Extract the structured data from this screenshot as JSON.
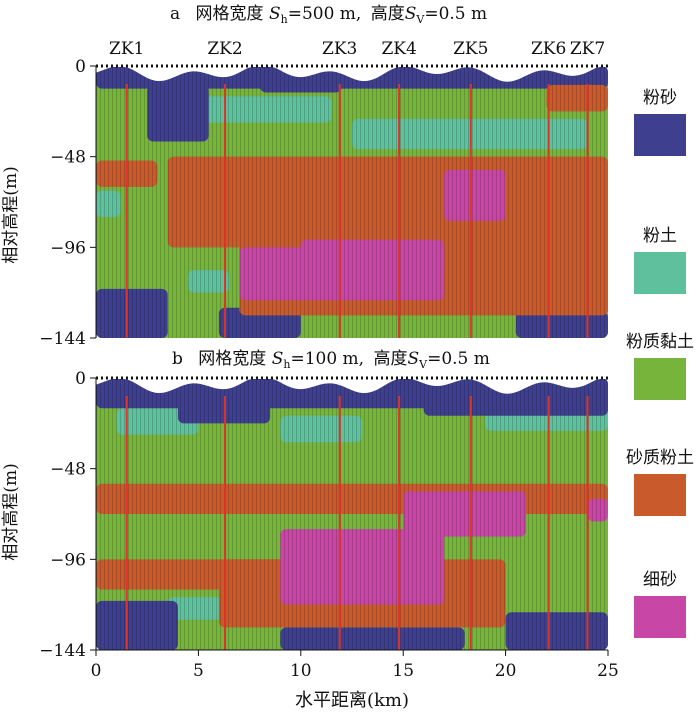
{
  "colors": {
    "粉砂": "#3e3f8f",
    "粉土": "#5ec09c",
    "粉质黏土": "#76b43c",
    "砂质粉土": "#c85a2c",
    "细砂": "#c847a6"
  },
  "legend": [
    {
      "label": "粉砂",
      "color": "#3e3f8f"
    },
    {
      "label": "粉土",
      "color": "#5ec09c"
    },
    {
      "label": "粉质黏土",
      "color": "#76b43c"
    },
    {
      "label": "砂质粉土",
      "color": "#c85a2c"
    },
    {
      "label": "细砂",
      "color": "#c847a6"
    }
  ],
  "panel_a": {
    "prefix": "a",
    "title_pre": "网格宽度",
    "sh_value": "=500 m,",
    "title_mid": "高度",
    "sv_value": "=0.5 m"
  },
  "panel_b": {
    "prefix": "b",
    "title_pre": "网格宽度",
    "sh_value": "=100 m,",
    "title_mid": "高度",
    "sv_value": "=0.5 m"
  },
  "symbols": {
    "S": "S",
    "h": "h",
    "v": "V"
  },
  "chart_data": {
    "type": "heatmap",
    "xlabel": "水平距离(km)",
    "ylabel": "相对高程(m)",
    "xlim": [
      0,
      25
    ],
    "ylim": [
      -144,
      0
    ],
    "xticks": [
      "0",
      "5",
      "10",
      "15",
      "20",
      "25"
    ],
    "yticks": [
      "0",
      "-48",
      "-96",
      "-144"
    ],
    "yticks_display": [
      "0",
      "−48",
      "−96",
      "−144"
    ],
    "boreholes": [
      {
        "name": "ZK1",
        "x": 1.5
      },
      {
        "name": "ZK2",
        "x": 6.3
      },
      {
        "name": "ZK3",
        "x": 11.9
      },
      {
        "name": "ZK4",
        "x": 14.8
      },
      {
        "name": "ZK5",
        "x": 18.3
      },
      {
        "name": "ZK6",
        "x": 22.1
      },
      {
        "name": "ZK7",
        "x": 24.0
      }
    ],
    "panel_a_layers": [
      {
        "lithology": "粉质黏土",
        "regions": [
          {
            "x": [
              0,
              25
            ],
            "y": [
              -144,
              0
            ]
          }
        ]
      },
      {
        "lithology": "粉土",
        "regions": [
          {
            "x": [
              3.5,
              11.5
            ],
            "y": [
              -30,
              -16
            ]
          },
          {
            "x": [
              12.5,
              24
            ],
            "y": [
              -44,
              -28
            ]
          },
          {
            "x": [
              0,
              1.2
            ],
            "y": [
              -80,
              -66
            ]
          },
          {
            "x": [
              4.5,
              6.5
            ],
            "y": [
              -120,
              -108
            ]
          },
          {
            "x": [
              20.5,
              22
            ],
            "y": [
              -80,
              -68
            ]
          }
        ]
      },
      {
        "lithology": "粉砂",
        "regions": [
          {
            "x": [
              0,
              25
            ],
            "y": [
              -12,
              0
            ]
          },
          {
            "x": [
              2.5,
              5.5
            ],
            "y": [
              -40,
              -10
            ]
          },
          {
            "x": [
              8,
              12
            ],
            "y": [
              -14,
              0
            ]
          },
          {
            "x": [
              0,
              3.5
            ],
            "y": [
              -144,
              -118
            ]
          },
          {
            "x": [
              6,
              10
            ],
            "y": [
              -144,
              -128
            ]
          },
          {
            "x": [
              20.5,
              25
            ],
            "y": [
              -144,
              -130
            ]
          }
        ]
      },
      {
        "lithology": "砂质粉土",
        "regions": [
          {
            "x": [
              0,
              3
            ],
            "y": [
              -64,
              -50
            ]
          },
          {
            "x": [
              3.5,
              25
            ],
            "y": [
              -96,
              -48
            ]
          },
          {
            "x": [
              7,
              25
            ],
            "y": [
              -132,
              -90
            ]
          },
          {
            "x": [
              22,
              25
            ],
            "y": [
              -24,
              -10
            ]
          }
        ]
      },
      {
        "lithology": "细砂",
        "regions": [
          {
            "x": [
              17,
              20
            ],
            "y": [
              -82,
              -55
            ]
          },
          {
            "x": [
              7,
              17
            ],
            "y": [
              -124,
              -96
            ]
          },
          {
            "x": [
              10,
              17
            ],
            "y": [
              -108,
              -92
            ]
          }
        ]
      }
    ],
    "panel_b_layers": [
      {
        "lithology": "粉质黏土",
        "regions": [
          {
            "x": [
              0,
              25
            ],
            "y": [
              -144,
              0
            ]
          }
        ]
      },
      {
        "lithology": "粉土",
        "regions": [
          {
            "x": [
              1,
              5
            ],
            "y": [
              -30,
              -16
            ]
          },
          {
            "x": [
              9,
              13
            ],
            "y": [
              -34,
              -20
            ]
          },
          {
            "x": [
              19,
              25
            ],
            "y": [
              -28,
              -16
            ]
          },
          {
            "x": [
              3.5,
              6.5
            ],
            "y": [
              -128,
              -116
            ]
          }
        ]
      },
      {
        "lithology": "粉砂",
        "regions": [
          {
            "x": [
              0,
              25
            ],
            "y": [
              -16,
              0
            ]
          },
          {
            "x": [
              4,
              8.5
            ],
            "y": [
              -24,
              0
            ]
          },
          {
            "x": [
              16,
              25
            ],
            "y": [
              -20,
              -8
            ]
          },
          {
            "x": [
              0,
              4
            ],
            "y": [
              -144,
              -118
            ]
          },
          {
            "x": [
              9,
              18
            ],
            "y": [
              -144,
              -132
            ]
          },
          {
            "x": [
              20,
              25
            ],
            "y": [
              -144,
              -124
            ]
          }
        ]
      },
      {
        "lithology": "砂质粉土",
        "regions": [
          {
            "x": [
              0,
              25
            ],
            "y": [
              -72,
              -56
            ]
          },
          {
            "x": [
              0,
              12
            ],
            "y": [
              -112,
              -96
            ]
          },
          {
            "x": [
              6,
              20
            ],
            "y": [
              -132,
              -96
            ]
          }
        ]
      },
      {
        "lithology": "细砂",
        "regions": [
          {
            "x": [
              15,
              21
            ],
            "y": [
              -84,
              -60
            ]
          },
          {
            "x": [
              9,
              17
            ],
            "y": [
              -120,
              -80
            ]
          },
          {
            "x": [
              24,
              25
            ],
            "y": [
              -76,
              -64
            ]
          }
        ]
      }
    ]
  }
}
